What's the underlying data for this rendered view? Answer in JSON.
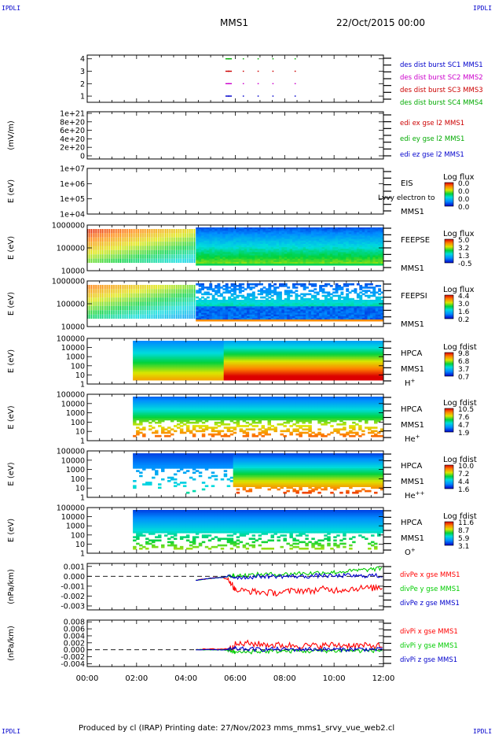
{
  "corner_label": "IPDLI",
  "header": {
    "spacecraft": "MMS1",
    "date": "22/Oct/2015 00:00"
  },
  "footer": "Produced by cl (IRAP)   Printing date: 27/Nov/2023   mms_mms1_srvy_vue_web2.cl",
  "x_axis": {
    "ticks": [
      "00:00",
      "02:00",
      "04:00",
      "06:00",
      "08:00",
      "10:00",
      "12:00"
    ],
    "range_hours": [
      0,
      12
    ]
  },
  "chart_data": [
    {
      "type": "scatter",
      "ylabel": "",
      "ylim": [
        0.5,
        4.3
      ],
      "yticks": [
        "1",
        "2",
        "3",
        "4"
      ],
      "legend": [
        {
          "label": "des dist burst SC1 MMS1",
          "color": "#0000cc"
        },
        {
          "label": "des dist burst SC2 MMS2",
          "color": "#cc00cc"
        },
        {
          "label": "des dist burst SC3 MMS3",
          "color": "#cc0000"
        },
        {
          "label": "des dist burst SC4 MMS4",
          "color": "#00aa00"
        }
      ],
      "series": [
        {
          "name": "des dist burst SC1 MMS1",
          "y": 1,
          "color": "#0000cc",
          "x": [
            5.6,
            5.7,
            6.3,
            6.9,
            7.5,
            8.4
          ]
        },
        {
          "name": "des dist burst SC2 MMS2",
          "y": 2,
          "color": "#cc00cc",
          "x": [
            5.6,
            5.7,
            6.3,
            6.9,
            7.5,
            8.4
          ]
        },
        {
          "name": "des dist burst SC3 MMS3",
          "y": 3,
          "color": "#cc0000",
          "x": [
            5.6,
            5.7,
            6.3,
            6.9,
            7.5,
            8.4
          ]
        },
        {
          "name": "des dist burst SC4 MMS4",
          "y": 4,
          "color": "#00aa00",
          "x": [
            5.6,
            5.7,
            6.3,
            6.9,
            7.5,
            8.4
          ]
        }
      ]
    },
    {
      "type": "line",
      "ylabel": "(mV/m)",
      "ylim": [
        0,
        1e+21
      ],
      "yticks": [
        "1e+21",
        "8e+20",
        "6e+20",
        "4e+20",
        "2e+20",
        "0"
      ],
      "zero_line": true,
      "legend": [
        {
          "label": "edi ex gse l2 MMS1",
          "color": "#cc0000"
        },
        {
          "label": "edi ey gse l2 MMS1",
          "color": "#00aa00"
        },
        {
          "label": "edi ez gse l2 MMS1",
          "color": "#0000cc"
        }
      ]
    },
    {
      "type": "heatmap",
      "ylabel": "E (eV)",
      "yticks": [
        "1e+07",
        "1e+06",
        "1e+05",
        "1e+04"
      ],
      "right_labels": [
        "EIS",
        "MMS1"
      ],
      "overlay_text": "Lvvy electron to",
      "colorbar": {
        "title": "Log flux",
        "ticks": [
          "0.0",
          "0.0",
          "0.0",
          "0.0"
        ]
      }
    },
    {
      "type": "heatmap",
      "ylabel": "E (eV)",
      "yticks": [
        "1000000",
        "100000",
        "10000"
      ],
      "right_labels": [
        "FEEPSE",
        "MMS1"
      ],
      "colorbar": {
        "title": "Log flux",
        "ticks": [
          "5.0",
          "3.2",
          "1.3",
          "-0.5"
        ]
      }
    },
    {
      "type": "heatmap",
      "ylabel": "E (eV)",
      "yticks": [
        "1000000",
        "100000",
        "10000"
      ],
      "right_labels": [
        "FEEPSI",
        "MMS1"
      ],
      "colorbar": {
        "title": "Log flux",
        "ticks": [
          "4.4",
          "3.0",
          "1.6",
          "0.2"
        ]
      }
    },
    {
      "type": "heatmap",
      "ylabel": "E (eV)",
      "yticks": [
        "100000",
        "10000",
        "1000",
        "100",
        "10",
        "1"
      ],
      "right_labels": [
        "HPCA",
        "MMS1"
      ],
      "species": "H",
      "species_sup": "+",
      "colorbar": {
        "title": "Log fdist",
        "ticks": [
          "9.8",
          "6.8",
          "3.7",
          "0.7"
        ]
      }
    },
    {
      "type": "heatmap",
      "ylabel": "E (eV)",
      "yticks": [
        "100000",
        "10000",
        "1000",
        "100",
        "10",
        "1"
      ],
      "right_labels": [
        "HPCA",
        "MMS1"
      ],
      "species": "He",
      "species_sup": "+",
      "colorbar": {
        "title": "Log fdist",
        "ticks": [
          "10.5",
          "7.6",
          "4.7",
          "1.9"
        ]
      }
    },
    {
      "type": "heatmap",
      "ylabel": "E (eV)",
      "yticks": [
        "100000",
        "10000",
        "1000",
        "100",
        "10",
        "1"
      ],
      "right_labels": [
        "HPCA",
        "MMS1"
      ],
      "species": "He",
      "species_sup": "++",
      "colorbar": {
        "title": "Log fdist",
        "ticks": [
          "10.0",
          "7.2",
          "4.4",
          "1.6"
        ]
      }
    },
    {
      "type": "heatmap",
      "ylabel": "E (eV)",
      "yticks": [
        "100000",
        "10000",
        "1000",
        "100",
        "10",
        "1"
      ],
      "right_labels": [
        "HPCA",
        "MMS1"
      ],
      "species": "O",
      "species_sup": "+",
      "colorbar": {
        "title": "Log fdist",
        "ticks": [
          "11.6",
          "8.7",
          "5.9",
          "3.1"
        ]
      }
    },
    {
      "type": "line",
      "ylabel": "(nPa/km)",
      "ylim": [
        -0.0034,
        0.0013
      ],
      "yticks": [
        0.001,
        0.0,
        -0.001,
        -0.002,
        -0.003
      ],
      "ytick_labels": [
        "0.001",
        "0.000",
        "-0.001",
        "-0.002",
        "-0.003"
      ],
      "zero_line": true,
      "legend": [
        {
          "label": "divPe x gse MMS1",
          "color": "#ff0000"
        },
        {
          "label": "divPe y gse MMS1",
          "color": "#00cc00"
        },
        {
          "label": "divPe z gse MMS1",
          "color": "#0000cc"
        }
      ],
      "series": [
        {
          "name": "divPe x gse MMS1",
          "color": "#ff0000",
          "x": [
            4.4,
            5.0,
            5.5,
            5.8,
            6.0,
            6.5,
            7.0,
            7.5,
            8.0,
            8.5,
            9.0,
            9.5,
            10.0,
            10.5,
            11.0,
            11.5,
            12.0
          ],
          "y": [
            -0.0004,
            -0.0002,
            -0.0001,
            -0.0005,
            -0.0014,
            -0.0015,
            -0.0016,
            -0.0017,
            -0.0016,
            -0.0014,
            -0.0015,
            -0.0013,
            -0.0014,
            -0.0013,
            -0.0012,
            -0.0012,
            -0.0011
          ]
        },
        {
          "name": "divPe y gse MMS1",
          "color": "#00cc00",
          "x": [
            4.4,
            5.0,
            5.5,
            5.8,
            6.0,
            6.5,
            7.0,
            7.5,
            8.0,
            8.5,
            9.0,
            9.5,
            10.0,
            10.5,
            11.0,
            11.5,
            12.0
          ],
          "y": [
            -0.0004,
            -0.0002,
            -0.0001,
            0.0,
            0.0001,
            0.0001,
            0.0002,
            0.0002,
            0.0002,
            0.0003,
            0.0003,
            0.0004,
            0.0004,
            0.0005,
            0.0006,
            0.0007,
            0.0008
          ]
        },
        {
          "name": "divPe z gse MMS1",
          "color": "#0000cc",
          "x": [
            4.4,
            5.0,
            5.5,
            5.8,
            6.0,
            6.5,
            7.0,
            7.5,
            8.0,
            8.5,
            9.0,
            9.5,
            10.0,
            10.5,
            11.0,
            11.5,
            12.0
          ],
          "y": [
            -0.0004,
            -0.0002,
            -0.0001,
            0.0,
            -0.0001,
            -0.0001,
            0.0,
            0.0,
            0.0,
            0.0,
            0.0,
            0.0001,
            0.0,
            0.0001,
            0.0,
            0.0001,
            0.0
          ]
        }
      ]
    },
    {
      "type": "line",
      "ylabel": "(nPa/km)",
      "ylim": [
        -0.0048,
        0.0085
      ],
      "yticks": [
        0.008,
        0.006,
        0.004,
        0.002,
        0.0,
        -0.002,
        -0.004
      ],
      "ytick_labels": [
        "0.008",
        "0.006",
        "0.004",
        "0.002",
        "0.000",
        "-0.002",
        "-0.004"
      ],
      "zero_line": true,
      "legend": [
        {
          "label": "divPi x gse MMS1",
          "color": "#ff0000"
        },
        {
          "label": "divPi y gse MMS1",
          "color": "#00cc00"
        },
        {
          "label": "divPi z gse MMS1",
          "color": "#0000cc"
        }
      ],
      "series": [
        {
          "name": "divPi x gse MMS1",
          "color": "#ff0000",
          "x": [
            4.4,
            5.0,
            5.5,
            5.8,
            6.0,
            6.5,
            7.0,
            7.5,
            8.0,
            8.5,
            9.0,
            9.5,
            10.0,
            10.5,
            11.0,
            11.5,
            12.0
          ],
          "y": [
            0.0001,
            0.0002,
            0.0002,
            0.0004,
            0.0015,
            0.0018,
            0.0016,
            0.0014,
            0.0012,
            0.0013,
            0.0011,
            0.0012,
            0.0014,
            0.0013,
            0.0012,
            0.0011,
            0.0012
          ]
        },
        {
          "name": "divPi y gse MMS1",
          "color": "#00cc00",
          "x": [
            4.4,
            5.0,
            5.5,
            5.8,
            6.0,
            6.5,
            7.0,
            7.5,
            8.0,
            8.5,
            9.0,
            9.5,
            10.0,
            10.5,
            11.0,
            11.5,
            12.0
          ],
          "y": [
            0.0,
            0.0,
            0.0,
            -0.0002,
            -0.0008,
            -0.0006,
            -0.0005,
            -0.0004,
            -0.0004,
            -0.0003,
            -0.0004,
            -0.0003,
            -0.0003,
            -0.0002,
            -0.0003,
            -0.0002,
            -0.0002
          ]
        },
        {
          "name": "divPi z gse MMS1",
          "color": "#0000cc",
          "x": [
            4.4,
            5.0,
            5.5,
            5.8,
            6.0,
            6.5,
            7.0,
            7.5,
            8.0,
            8.5,
            9.0,
            9.5,
            10.0,
            10.5,
            11.0,
            11.5,
            12.0
          ],
          "y": [
            0.0,
            0.0,
            0.0,
            0.0001,
            0.0003,
            0.0002,
            0.0001,
            0.0002,
            0.0001,
            0.0001,
            0.0002,
            0.0001,
            0.0001,
            0.0001,
            0.0002,
            0.0001,
            0.0001
          ]
        }
      ]
    }
  ]
}
